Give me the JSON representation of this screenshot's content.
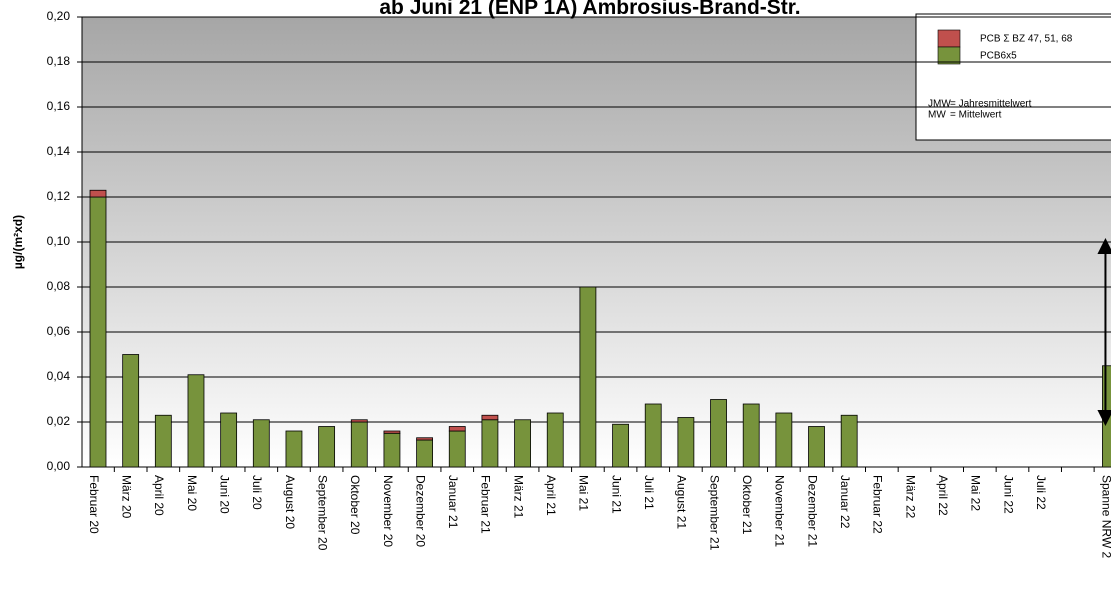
{
  "chart_data": {
    "type": "stacked_bar",
    "title": "ab Juni 21 (ENP 1A) Ambrosius-Brand-Str.",
    "y_label": "µg/(m²xd)",
    "categories": [
      "Februar 20",
      "März 20",
      "April 20",
      "Mai 20",
      "Juni 20",
      "Juli 20",
      "August 20",
      "September 20",
      "Oktober 20",
      "November 20",
      "Dezember 20",
      "Januar 21",
      "Februar 21",
      "März 21",
      "April 21",
      "Mai 21",
      "Juni 21",
      "Juli 21",
      "August 21",
      "September 21",
      "Oktober 21",
      "November 21",
      "Dezember 21",
      "Januar 22",
      "Februar 22",
      "März 22",
      "April 22",
      "Mai 22",
      "Juni 22",
      "Juli 22",
      null,
      "Spanne NRW 2"
    ],
    "series": [
      {
        "name": "PCB6x5",
        "color": "#77933c",
        "values": [
          0.12,
          0.05,
          0.023,
          0.041,
          0.024,
          0.021,
          0.016,
          0.018,
          0.02,
          0.015,
          0.012,
          0.016,
          0.021,
          0.021,
          0.024,
          0.08,
          0.019,
          0.028,
          0.022,
          0.03,
          0.028,
          0.024,
          0.018,
          0.023,
          null,
          null,
          null,
          null,
          null,
          null,
          null,
          0.045
        ]
      },
      {
        "name": "PCB Σ BZ 47, 51, 68",
        "color": "#c0504d",
        "values": [
          0.003,
          null,
          null,
          null,
          null,
          null,
          null,
          null,
          0.001,
          0.001,
          0.001,
          0.002,
          0.002,
          null,
          null,
          null,
          null,
          null,
          null,
          null,
          null,
          null,
          null,
          null,
          null,
          null,
          null,
          null,
          null,
          null,
          null,
          null
        ]
      }
    ],
    "spanne_range": [
      0.02,
      0.1
    ],
    "notes": [
      "JMW",
      "= Jahresmittelwert",
      "MW",
      "= Mittelwert"
    ],
    "ylim": [
      0,
      0.2
    ],
    "yticks": [
      {
        "value": 0,
        "label": "0,00"
      },
      {
        "value": 0.02,
        "label": "0,02"
      },
      {
        "value": 0.04,
        "label": "0,04"
      },
      {
        "value": 0.06,
        "label": "0,06"
      },
      {
        "value": 0.08,
        "label": "0,08"
      },
      {
        "value": 0.1,
        "label": "0,10"
      },
      {
        "value": 0.12,
        "label": "0,12"
      },
      {
        "value": 0.14,
        "label": "0,14"
      },
      {
        "value": 0.16,
        "label": "0,16"
      },
      {
        "value": 0.18,
        "label": "0,18"
      },
      {
        "value": 0.2,
        "label": "0,20"
      }
    ],
    "grid": true
  }
}
